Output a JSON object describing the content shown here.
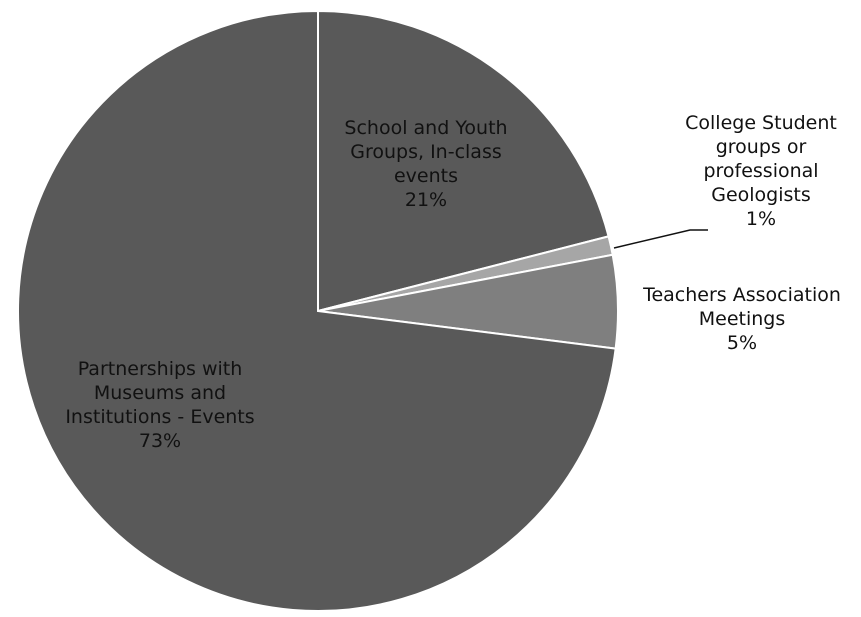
{
  "chart_data": {
    "type": "pie",
    "title": "",
    "start_angle_deg": 0,
    "direction": "clockwise",
    "slice_border_color": "#ffffff",
    "slices": [
      {
        "label_lines": [
          "School and Youth",
          "Groups, In-class",
          "events"
        ],
        "value": 21,
        "pct_label": "21%",
        "color": "#595959"
      },
      {
        "label_lines": [
          "College Student",
          "groups or",
          "professional",
          "Geologists"
        ],
        "value": 1,
        "pct_label": "1%",
        "color": "#a6a6a6"
      },
      {
        "label_lines": [
          "Teachers Association",
          "Meetings"
        ],
        "value": 5,
        "pct_label": "5%",
        "color": "#7f7f7f"
      },
      {
        "label_lines": [
          "Partnerships with",
          "Museums and",
          "Institutions - Events"
        ],
        "value": 73,
        "pct_label": "73%",
        "color": "#595959"
      }
    ]
  }
}
